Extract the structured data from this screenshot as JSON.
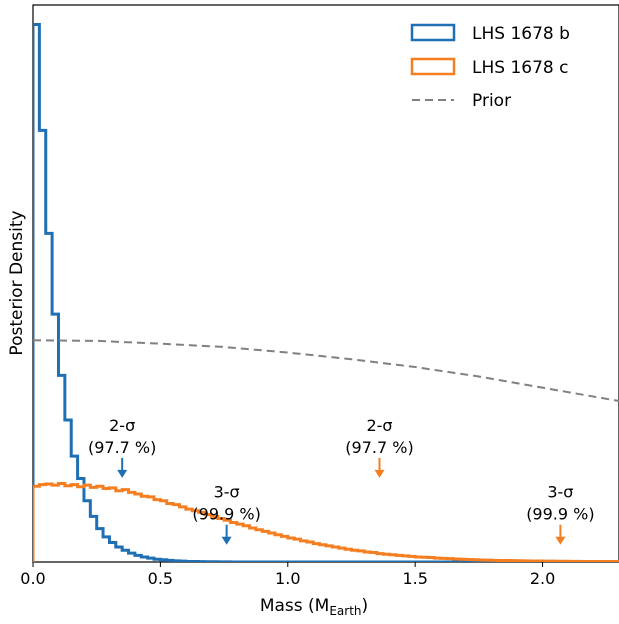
{
  "chart_data": {
    "type": "histogram",
    "xlabel": "Mass (M",
    "xlabel_sub": "Earth",
    "xlabel_close": ")",
    "ylabel": "Posterior Density",
    "xlim": [
      0,
      2.3
    ],
    "ylim": [
      0,
      1.0
    ],
    "x_ticks": [
      "0.0",
      "0.5",
      "1.0",
      "1.5",
      "2.0"
    ],
    "x_tick_values": [
      0.0,
      0.5,
      1.0,
      1.5,
      2.0
    ],
    "grid": false,
    "legend_position": "top-right",
    "series": [
      {
        "name": "LHS 1678 b",
        "color": "#1f6fb4",
        "kind": "step",
        "bin_width": 0.025,
        "values": [
          0.965,
          0.775,
          0.59,
          0.445,
          0.335,
          0.255,
          0.19,
          0.15,
          0.11,
          0.082,
          0.06,
          0.045,
          0.035,
          0.027,
          0.021,
          0.016,
          0.012,
          0.009,
          0.007,
          0.005,
          0.004,
          0.003,
          0.002,
          0.0015,
          0.001,
          0.0008,
          0.0006,
          0.0005,
          0.0004,
          0.0003,
          0.0002,
          0.0001
        ]
      },
      {
        "name": "LHS 1678 c",
        "color": "#f57f20",
        "kind": "step",
        "bin_width": 0.025,
        "values": [
          0.136,
          0.139,
          0.14,
          0.138,
          0.141,
          0.137,
          0.139,
          0.135,
          0.138,
          0.134,
          0.136,
          0.132,
          0.133,
          0.128,
          0.13,
          0.125,
          0.122,
          0.118,
          0.117,
          0.112,
          0.11,
          0.105,
          0.103,
          0.099,
          0.095,
          0.092,
          0.089,
          0.085,
          0.082,
          0.078,
          0.075,
          0.071,
          0.068,
          0.065,
          0.061,
          0.058,
          0.055,
          0.052,
          0.049,
          0.046,
          0.043,
          0.041,
          0.038,
          0.036,
          0.033,
          0.031,
          0.029,
          0.027,
          0.025,
          0.023,
          0.021,
          0.02,
          0.018,
          0.017,
          0.015,
          0.014,
          0.013,
          0.012,
          0.011,
          0.01,
          0.009,
          0.0085,
          0.008,
          0.007,
          0.0065,
          0.006,
          0.0055,
          0.005,
          0.0045,
          0.004,
          0.0037,
          0.0034,
          0.003,
          0.0028,
          0.0026,
          0.0024,
          0.0022,
          0.002,
          0.0018,
          0.0017,
          0.0016,
          0.0015,
          0.0014,
          0.0013,
          0.0012,
          0.0011,
          0.001,
          0.001,
          0.0009,
          0.0009,
          0.0008,
          0.0008
        ]
      },
      {
        "name": "Prior",
        "color": "#808080",
        "kind": "dashed-line",
        "x": [
          0.0,
          0.25,
          0.5,
          0.75,
          1.0,
          1.25,
          1.5,
          1.75,
          2.0,
          2.3
        ],
        "values": [
          0.398,
          0.397,
          0.392,
          0.386,
          0.376,
          0.364,
          0.35,
          0.333,
          0.313,
          0.289
        ]
      }
    ],
    "annotations": [
      {
        "line1": "2-σ",
        "line2": "(97.7 %)",
        "x": 0.35,
        "series": "LHS 1678 b",
        "color": "#1f6fb4",
        "arrow_level": 0.23
      },
      {
        "line1": "3-σ",
        "line2": "(99.9 %)",
        "x": 0.76,
        "series": "LHS 1678 b",
        "color": "#1f6fb4",
        "arrow_level": 0.11
      },
      {
        "line1": "2-σ",
        "line2": "(97.7 %)",
        "x": 1.36,
        "series": "LHS 1678 c",
        "color": "#f57f20",
        "arrow_level": 0.23
      },
      {
        "line1": "3-σ",
        "line2": "(99.9 %)",
        "x": 2.07,
        "series": "LHS 1678 c",
        "color": "#f57f20",
        "arrow_level": 0.11
      }
    ]
  }
}
